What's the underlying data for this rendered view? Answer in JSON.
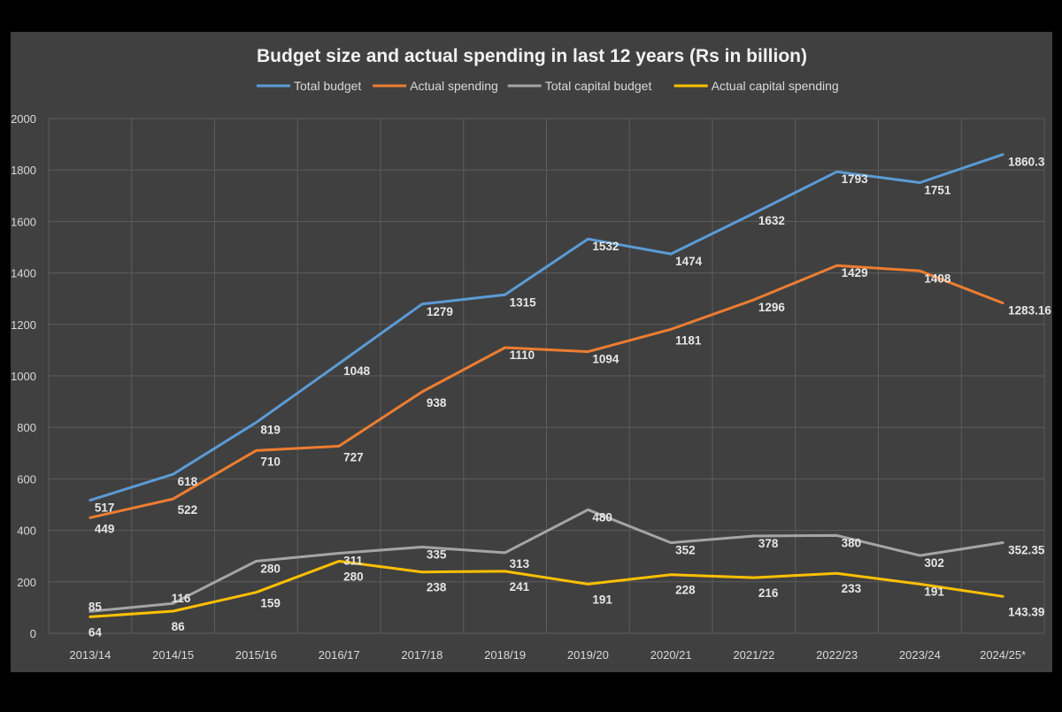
{
  "chart_data": {
    "type": "line",
    "title": "Budget size and actual spending in last 12 years (Rs in billion)",
    "xlabel": "",
    "ylabel": "",
    "ylim": [
      0,
      2000
    ],
    "yticks": [
      0,
      200,
      400,
      600,
      800,
      1000,
      1200,
      1400,
      1600,
      1800,
      2000
    ],
    "grid": true,
    "legend_position": "top",
    "categories": [
      "2013/14",
      "2014/15",
      "2015/16",
      "2016/17",
      "2017/18",
      "2018/19",
      "2019/20",
      "2020/21",
      "2021/22",
      "2022/23",
      "2023/24",
      "2024/25*"
    ],
    "series": [
      {
        "name": "Total budget",
        "color": "#5b9bd5",
        "values": [
          517,
          618,
          819,
          1048,
          1279,
          1315,
          1532,
          1474,
          1632,
          1793,
          1751,
          1860.3
        ],
        "labels": [
          "517",
          "618",
          "819",
          "1048",
          "1279",
          "1315",
          "1532",
          "1474",
          "1632",
          "1793",
          "1751",
          "1860.3"
        ]
      },
      {
        "name": "Actual spending",
        "color": "#ed7d31",
        "values": [
          449,
          522,
          710,
          727,
          938,
          1110,
          1094,
          1181,
          1296,
          1429,
          1408,
          1283.16
        ],
        "labels": [
          "449",
          "522",
          "710",
          "727",
          "938",
          "1110",
          "1094",
          "1181",
          "1296",
          "1429",
          "1408",
          "1283.16"
        ]
      },
      {
        "name": "Total capital budget",
        "color": "#a5a5a5",
        "values": [
          85,
          116,
          280,
          311,
          335,
          313,
          480,
          352,
          378,
          380,
          302,
          352.35
        ],
        "labels": [
          "85",
          "116",
          "280",
          "311",
          "335",
          "313",
          "480",
          "352",
          "378",
          "380",
          "302",
          "352.35"
        ]
      },
      {
        "name": "Actual capital spending",
        "color": "#ffc000",
        "values": [
          64,
          86,
          159,
          280,
          238,
          241,
          191,
          228,
          216,
          233,
          191,
          143.39
        ],
        "labels": [
          "64",
          "86",
          "159",
          "280",
          "238",
          "241",
          "191",
          "228",
          "216",
          "233",
          "191",
          "143.39"
        ]
      }
    ]
  }
}
